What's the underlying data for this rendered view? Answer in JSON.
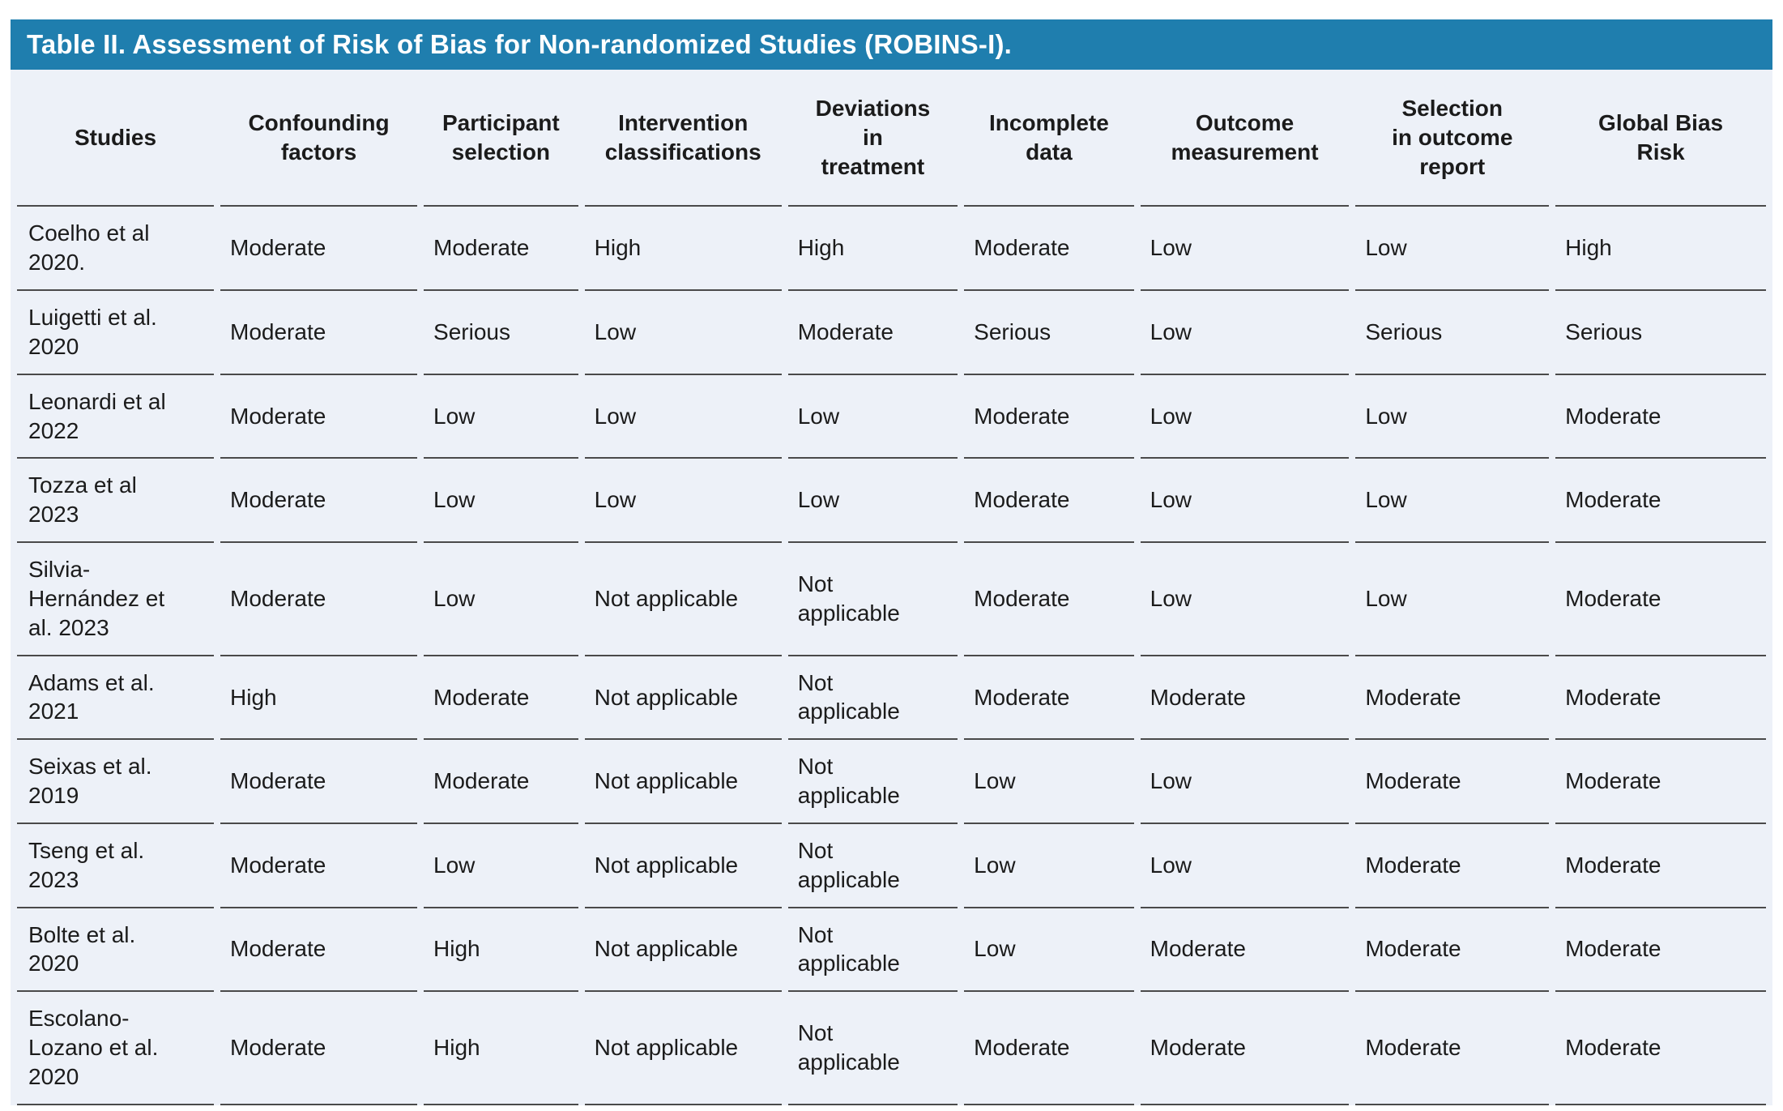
{
  "title": "Table II. Assessment of Risk of Bias for Non-randomized Studies (ROBINS-I).",
  "colors": {
    "header_bar": "#1f7eae",
    "table_bg": "#edf1f8",
    "row_border": "#4a4a4a",
    "text": "#1b1b1b",
    "title_text": "#ffffff"
  },
  "table": {
    "columns": [
      "Studies",
      "Confounding\nfactors",
      "Participant\nselection",
      "Intervention\nclassifications",
      "Deviations\nin\ntreatment",
      "Incomplete\ndata",
      "Outcome\nmeasurement",
      "Selection\nin outcome\nreport",
      "Global Bias\nRisk"
    ],
    "rows": [
      {
        "study": "Coelho et al\n2020.",
        "cells": [
          "Moderate",
          "Moderate",
          "High",
          "High",
          "Moderate",
          "Low",
          "Low",
          "High"
        ]
      },
      {
        "study": "Luigetti et al.\n2020",
        "cells": [
          "Moderate",
          "Serious",
          "Low",
          "Moderate",
          "Serious",
          "Low",
          "Serious",
          "Serious"
        ]
      },
      {
        "study": "Leonardi et al\n2022",
        "cells": [
          "Moderate",
          "Low",
          "Low",
          "Low",
          "Moderate",
          "Low",
          "Low",
          "Moderate"
        ]
      },
      {
        "study": "Tozza et al\n2023",
        "cells": [
          "Moderate",
          "Low",
          "Low",
          "Low",
          "Moderate",
          "Low",
          "Low",
          "Moderate"
        ]
      },
      {
        "study": "Silvia-\nHernández et\nal. 2023",
        "cells": [
          "Moderate",
          "Low",
          "Not applicable",
          "Not\napplicable",
          "Moderate",
          "Low",
          "Low",
          "Moderate"
        ]
      },
      {
        "study": "Adams et al.\n2021",
        "cells": [
          "High",
          "Moderate",
          "Not applicable",
          "Not\napplicable",
          "Moderate",
          "Moderate",
          "Moderate",
          "Moderate"
        ]
      },
      {
        "study": "Seixas et al.\n2019",
        "cells": [
          "Moderate",
          "Moderate",
          "Not applicable",
          "Not\napplicable",
          "Low",
          "Low",
          "Moderate",
          "Moderate"
        ]
      },
      {
        "study": "Tseng et al.\n2023",
        "cells": [
          "Moderate",
          "Low",
          "Not applicable",
          "Not\napplicable",
          "Low",
          "Low",
          "Moderate",
          "Moderate"
        ]
      },
      {
        "study": "Bolte et al.\n2020",
        "cells": [
          "Moderate",
          "High",
          "Not applicable",
          "Not\napplicable",
          "Low",
          "Moderate",
          "Moderate",
          "Moderate"
        ]
      },
      {
        "study": "Escolano-\nLozano et al.\n2020",
        "cells": [
          "Moderate",
          "High",
          "Not applicable",
          "Not\napplicable",
          "Moderate",
          "Moderate",
          "Moderate",
          "Moderate"
        ]
      }
    ]
  }
}
